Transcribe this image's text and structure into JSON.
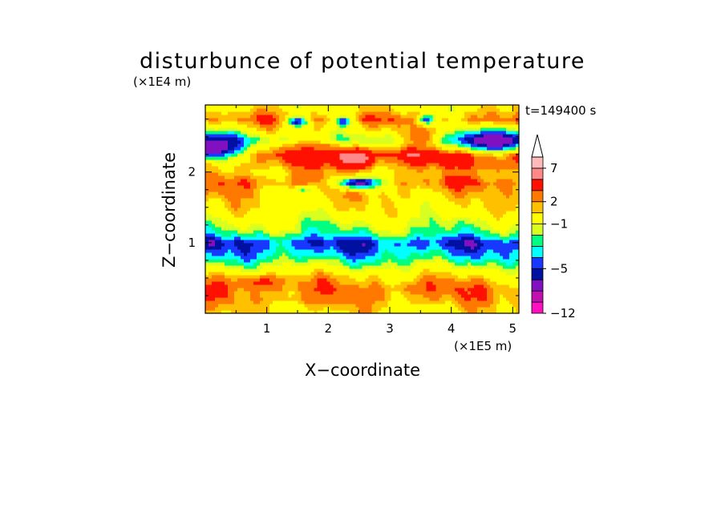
{
  "chart_data": {
    "type": "heatmap",
    "title": "disturbunce of potential temperature",
    "xlabel": "X−coordinate",
    "ylabel": "Z−coordinate",
    "x_unit": "(×1E5 m)",
    "y_unit": "(×1E4 m)",
    "time_label": "t=149400 s",
    "xlim": [
      0,
      5.1
    ],
    "ylim": [
      0,
      2.95
    ],
    "x_ticks": [
      {
        "value": 1,
        "label": "1"
      },
      {
        "value": 2,
        "label": "2"
      },
      {
        "value": 3,
        "label": "3"
      },
      {
        "value": 4,
        "label": "4"
      },
      {
        "value": 5,
        "label": "5"
      }
    ],
    "y_ticks": [
      {
        "value": 1,
        "label": "1"
      },
      {
        "value": 2,
        "label": "2"
      }
    ],
    "colorbar": {
      "levels": [
        -12,
        -10,
        -8,
        -6,
        -5,
        -4,
        -3,
        -2,
        -1,
        1,
        2,
        3,
        5,
        7,
        9
      ],
      "colors": [
        "#ff10c0",
        "#c010b0",
        "#8010c0",
        "#0010a0",
        "#1838ff",
        "#00ffff",
        "#00ff80",
        "#d8ff20",
        "#ffff00",
        "#ffc000",
        "#ff7800",
        "#ff1000",
        "#ff8888",
        "#ffbbbb"
      ],
      "extend_top": true,
      "tick_labels": [
        {
          "value": 7,
          "label": "7"
        },
        {
          "value": 2,
          "label": "2"
        },
        {
          "value": -1,
          "label": "−1"
        },
        {
          "value": -5,
          "label": "−5"
        },
        {
          "value": -12,
          "label": "−12"
        }
      ]
    },
    "field_profile": {
      "z": [
        0.0,
        0.1,
        0.2,
        0.35,
        0.5,
        0.65,
        0.8,
        1.0,
        1.15,
        1.3,
        1.45,
        1.6,
        1.75,
        1.85,
        2.0,
        2.15,
        2.25,
        2.35,
        2.45,
        2.6,
        2.75,
        2.9
      ],
      "mean": [
        0.6,
        1.0,
        1.8,
        2.4,
        1.4,
        -0.8,
        -3.2,
        -5.0,
        -2.2,
        -1.0,
        0.2,
        0.8,
        1.6,
        2.6,
        1.4,
        3.0,
        4.2,
        1.6,
        -2.0,
        0.6,
        2.4,
        0.4
      ]
    },
    "features": [
      {
        "x": 2.2,
        "z": 2.25,
        "value": 8.0,
        "rx": 0.1,
        "rz": 0.05
      },
      {
        "x": 2.4,
        "z": 2.2,
        "value": 6.5,
        "rx": 0.3,
        "rz": 0.12
      },
      {
        "x": 1.8,
        "z": 2.3,
        "value": 3.0,
        "rx": 0.5,
        "rz": 0.15
      },
      {
        "x": 3.5,
        "z": 2.5,
        "value": 3.0,
        "rx": 0.3,
        "rz": 0.15
      },
      {
        "x": 0.1,
        "z": 2.35,
        "value": -7.5,
        "rx": 0.6,
        "rz": 0.2
      },
      {
        "x": 4.7,
        "z": 2.45,
        "value": -7.5,
        "rx": 0.6,
        "rz": 0.16
      },
      {
        "x": 2.5,
        "z": 1.85,
        "value": -6.5,
        "rx": 0.4,
        "rz": 0.09
      },
      {
        "x": 1.5,
        "z": 2.72,
        "value": -5.5,
        "rx": 0.18,
        "rz": 0.08
      },
      {
        "x": 2.25,
        "z": 2.72,
        "value": -5.5,
        "rx": 0.12,
        "rz": 0.07
      },
      {
        "x": 3.6,
        "z": 2.75,
        "value": -4.5,
        "rx": 0.15,
        "rz": 0.08
      },
      {
        "x": 1.6,
        "z": 1.75,
        "value": -2.2,
        "rx": 0.15,
        "rz": 0.06
      },
      {
        "x": 4.7,
        "z": 2.1,
        "value": 3.0,
        "rx": 0.4,
        "rz": 0.1
      },
      {
        "x": 0.25,
        "z": 1.8,
        "value": 3.0,
        "rx": 0.4,
        "rz": 0.1
      },
      {
        "x": 0.9,
        "z": 0.45,
        "value": 3.2,
        "rx": 0.5,
        "rz": 0.1
      },
      {
        "x": 3.6,
        "z": 0.35,
        "value": 3.0,
        "rx": 0.4,
        "rz": 0.08
      },
      {
        "x": 2.0,
        "z": 0.2,
        "value": 2.8,
        "rx": 0.6,
        "rz": 0.08
      }
    ]
  }
}
